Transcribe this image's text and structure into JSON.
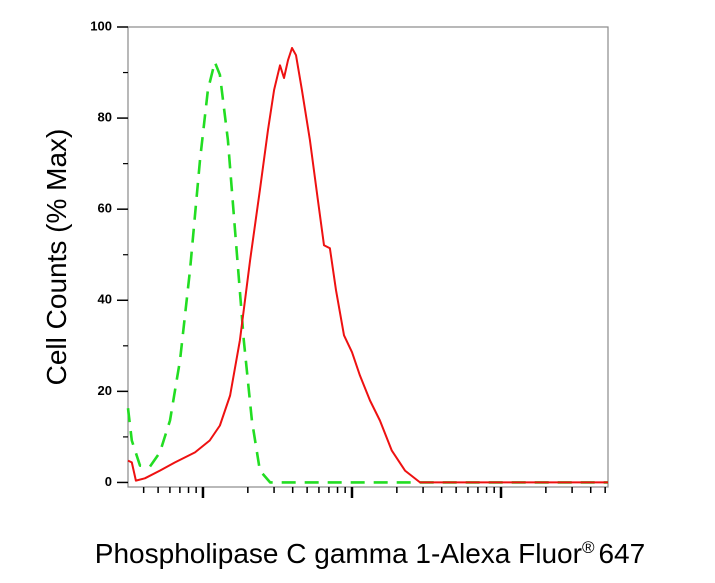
{
  "chart_data": {
    "type": "line",
    "ylabel": "Cell Counts (% Max)",
    "xlabel": {
      "text": "Phospholipase C gamma 1-Alexa Fluor",
      "sup": "®",
      "after": "647"
    },
    "xscale": "log",
    "xlim": [
      3.14,
      5224
    ],
    "xticks": [
      10,
      100,
      1000
    ],
    "xminorticks": [
      4,
      5,
      6,
      7,
      8,
      9,
      20,
      30,
      40,
      50,
      60,
      70,
      80,
      90,
      200,
      300,
      400,
      500,
      600,
      700,
      800,
      900,
      2000,
      3000,
      4000,
      5000
    ],
    "ylim": [
      -1,
      100
    ],
    "yticks": [
      0,
      20,
      40,
      60,
      80,
      100
    ],
    "yminorticks": [
      10,
      30,
      50,
      70,
      90
    ],
    "series": [
      {
        "color": "#22dd22",
        "dashed": true,
        "x": [
          3.14,
          3.33,
          3.78,
          4.41,
          5.14,
          6.01,
          7.01,
          8.18,
          9.55,
          10.8,
          12.0,
          13.0,
          14.7,
          16.6,
          18.8,
          21.3,
          24.1,
          28.2,
          5224
        ],
        "values": [
          16.3,
          9.2,
          3.7,
          3.5,
          6.6,
          13.6,
          26.8,
          46.6,
          70.8,
          86.2,
          92.3,
          89.5,
          75.2,
          53.2,
          31.2,
          13.6,
          2.6,
          0,
          0
        ]
      },
      {
        "color": "#ee1111",
        "dashed": false,
        "x": [
          3.14,
          3.33,
          3.55,
          4.08,
          5.14,
          6.49,
          8.84,
          11.1,
          13.0,
          15.2,
          17.7,
          20.7,
          24.1,
          27.3,
          30.0,
          32.9,
          35.0,
          37.2,
          39.6,
          42.1,
          46.1,
          52.2,
          59.1,
          64.9,
          71.1,
          78.1,
          88.4,
          100,
          113,
          132,
          154,
          185,
          227,
          286,
          5224
        ],
        "values": [
          4.8,
          4.4,
          0.4,
          0.9,
          2.6,
          4.4,
          6.6,
          9.2,
          12.5,
          19.1,
          31.2,
          48.8,
          64.2,
          77.4,
          86.2,
          91.6,
          88.8,
          92.7,
          95.4,
          93.8,
          86.2,
          75.2,
          62.0,
          52.1,
          51.4,
          42.2,
          32.3,
          28.6,
          23.5,
          18.0,
          13.6,
          7.0,
          2.6,
          0,
          0
        ]
      }
    ]
  }
}
